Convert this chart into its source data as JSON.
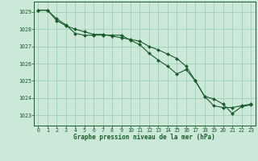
{
  "title": "Graphe pression niveau de la mer (hPa)",
  "bg_color": "#cce8d8",
  "grid_color": "#99ccb0",
  "line_color": "#1a5c2a",
  "marker_color": "#1a5c2a",
  "xlim": [
    -0.5,
    23.5
  ],
  "ylim": [
    1022.4,
    1029.6
  ],
  "yticks": [
    1023,
    1024,
    1025,
    1026,
    1027,
    1028,
    1029
  ],
  "xticks": [
    0,
    1,
    2,
    3,
    4,
    5,
    6,
    7,
    8,
    9,
    10,
    11,
    12,
    13,
    14,
    15,
    16,
    17,
    18,
    19,
    20,
    21,
    22,
    23
  ],
  "series1_x": [
    0,
    1,
    2,
    3,
    4,
    5,
    6,
    7,
    8,
    9,
    10,
    11,
    12,
    13,
    14,
    15,
    16,
    17,
    18,
    19,
    20,
    21,
    22,
    23
  ],
  "series1_y": [
    1029.1,
    1029.1,
    1028.6,
    1028.25,
    1027.75,
    1027.65,
    1027.65,
    1027.65,
    1027.65,
    1027.65,
    1027.35,
    1027.1,
    1026.6,
    1026.2,
    1025.85,
    1025.4,
    1025.65,
    1025.0,
    1024.1,
    1023.95,
    1023.65,
    1023.1,
    1023.5,
    1023.6
  ],
  "series2_x": [
    0,
    1,
    2,
    3,
    4,
    5,
    6,
    7,
    8,
    9,
    10,
    11,
    12,
    13,
    14,
    15,
    16,
    17,
    18,
    19,
    20,
    21,
    22,
    23
  ],
  "series2_y": [
    1029.1,
    1029.1,
    1028.5,
    1028.2,
    1028.0,
    1027.85,
    1027.7,
    1027.7,
    1027.6,
    1027.5,
    1027.4,
    1027.3,
    1027.0,
    1026.8,
    1026.55,
    1026.3,
    1025.85,
    1025.0,
    1024.1,
    1023.55,
    1023.45,
    1023.45,
    1023.55,
    1023.65
  ],
  "xlabel_fontsize": 5.5,
  "tick_fontsize": 4.8,
  "spine_color": "#1a5c2a"
}
